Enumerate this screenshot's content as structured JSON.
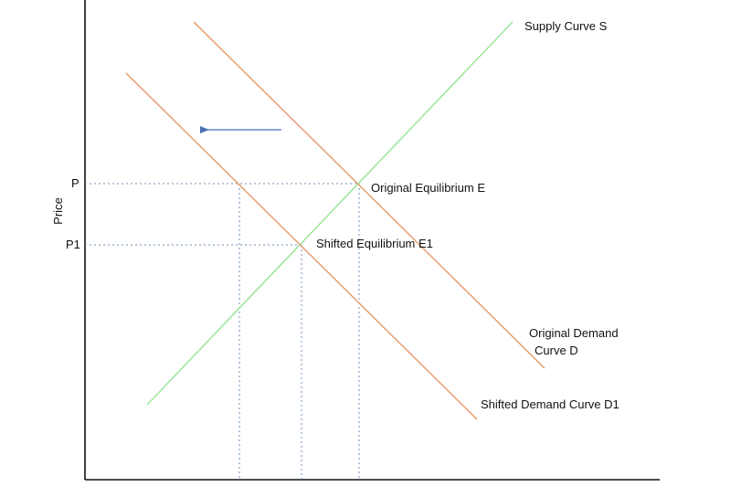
{
  "labels": {
    "supply": "Supply Curve S",
    "original_equilibrium": "Original Equilibrium E",
    "shifted_equilibrium": "Shifted Equilibrium E1",
    "original_demand_line1": "Original Demand",
    "original_demand_line2": "Curve D",
    "shifted_demand": "Shifted Demand Curve D1"
  },
  "axes": {
    "y_label": "Price",
    "tick_p": "P",
    "tick_p1": "P1"
  },
  "colors": {
    "supply": "#9ee89e",
    "demand": "#e8a57a",
    "guides": "#6f8fb8",
    "arrow": "#4a6fb5",
    "axis": "#111111"
  }
}
